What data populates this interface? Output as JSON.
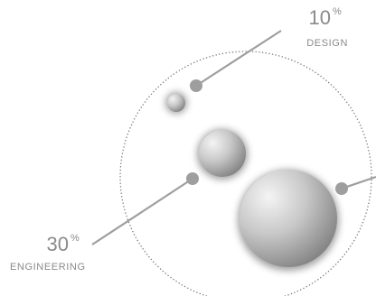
{
  "colors": {
    "line": "#9e9e9e",
    "dot": "#9e9e9e",
    "text": "#8a8a8a",
    "ring": "#7a7a7a"
  },
  "segments": [
    {
      "id": "design",
      "value": "10",
      "unit": "%",
      "label": "DESIGN"
    },
    {
      "id": "engineering",
      "value": "30",
      "unit": "%",
      "label": "ENGINEERING"
    }
  ]
}
